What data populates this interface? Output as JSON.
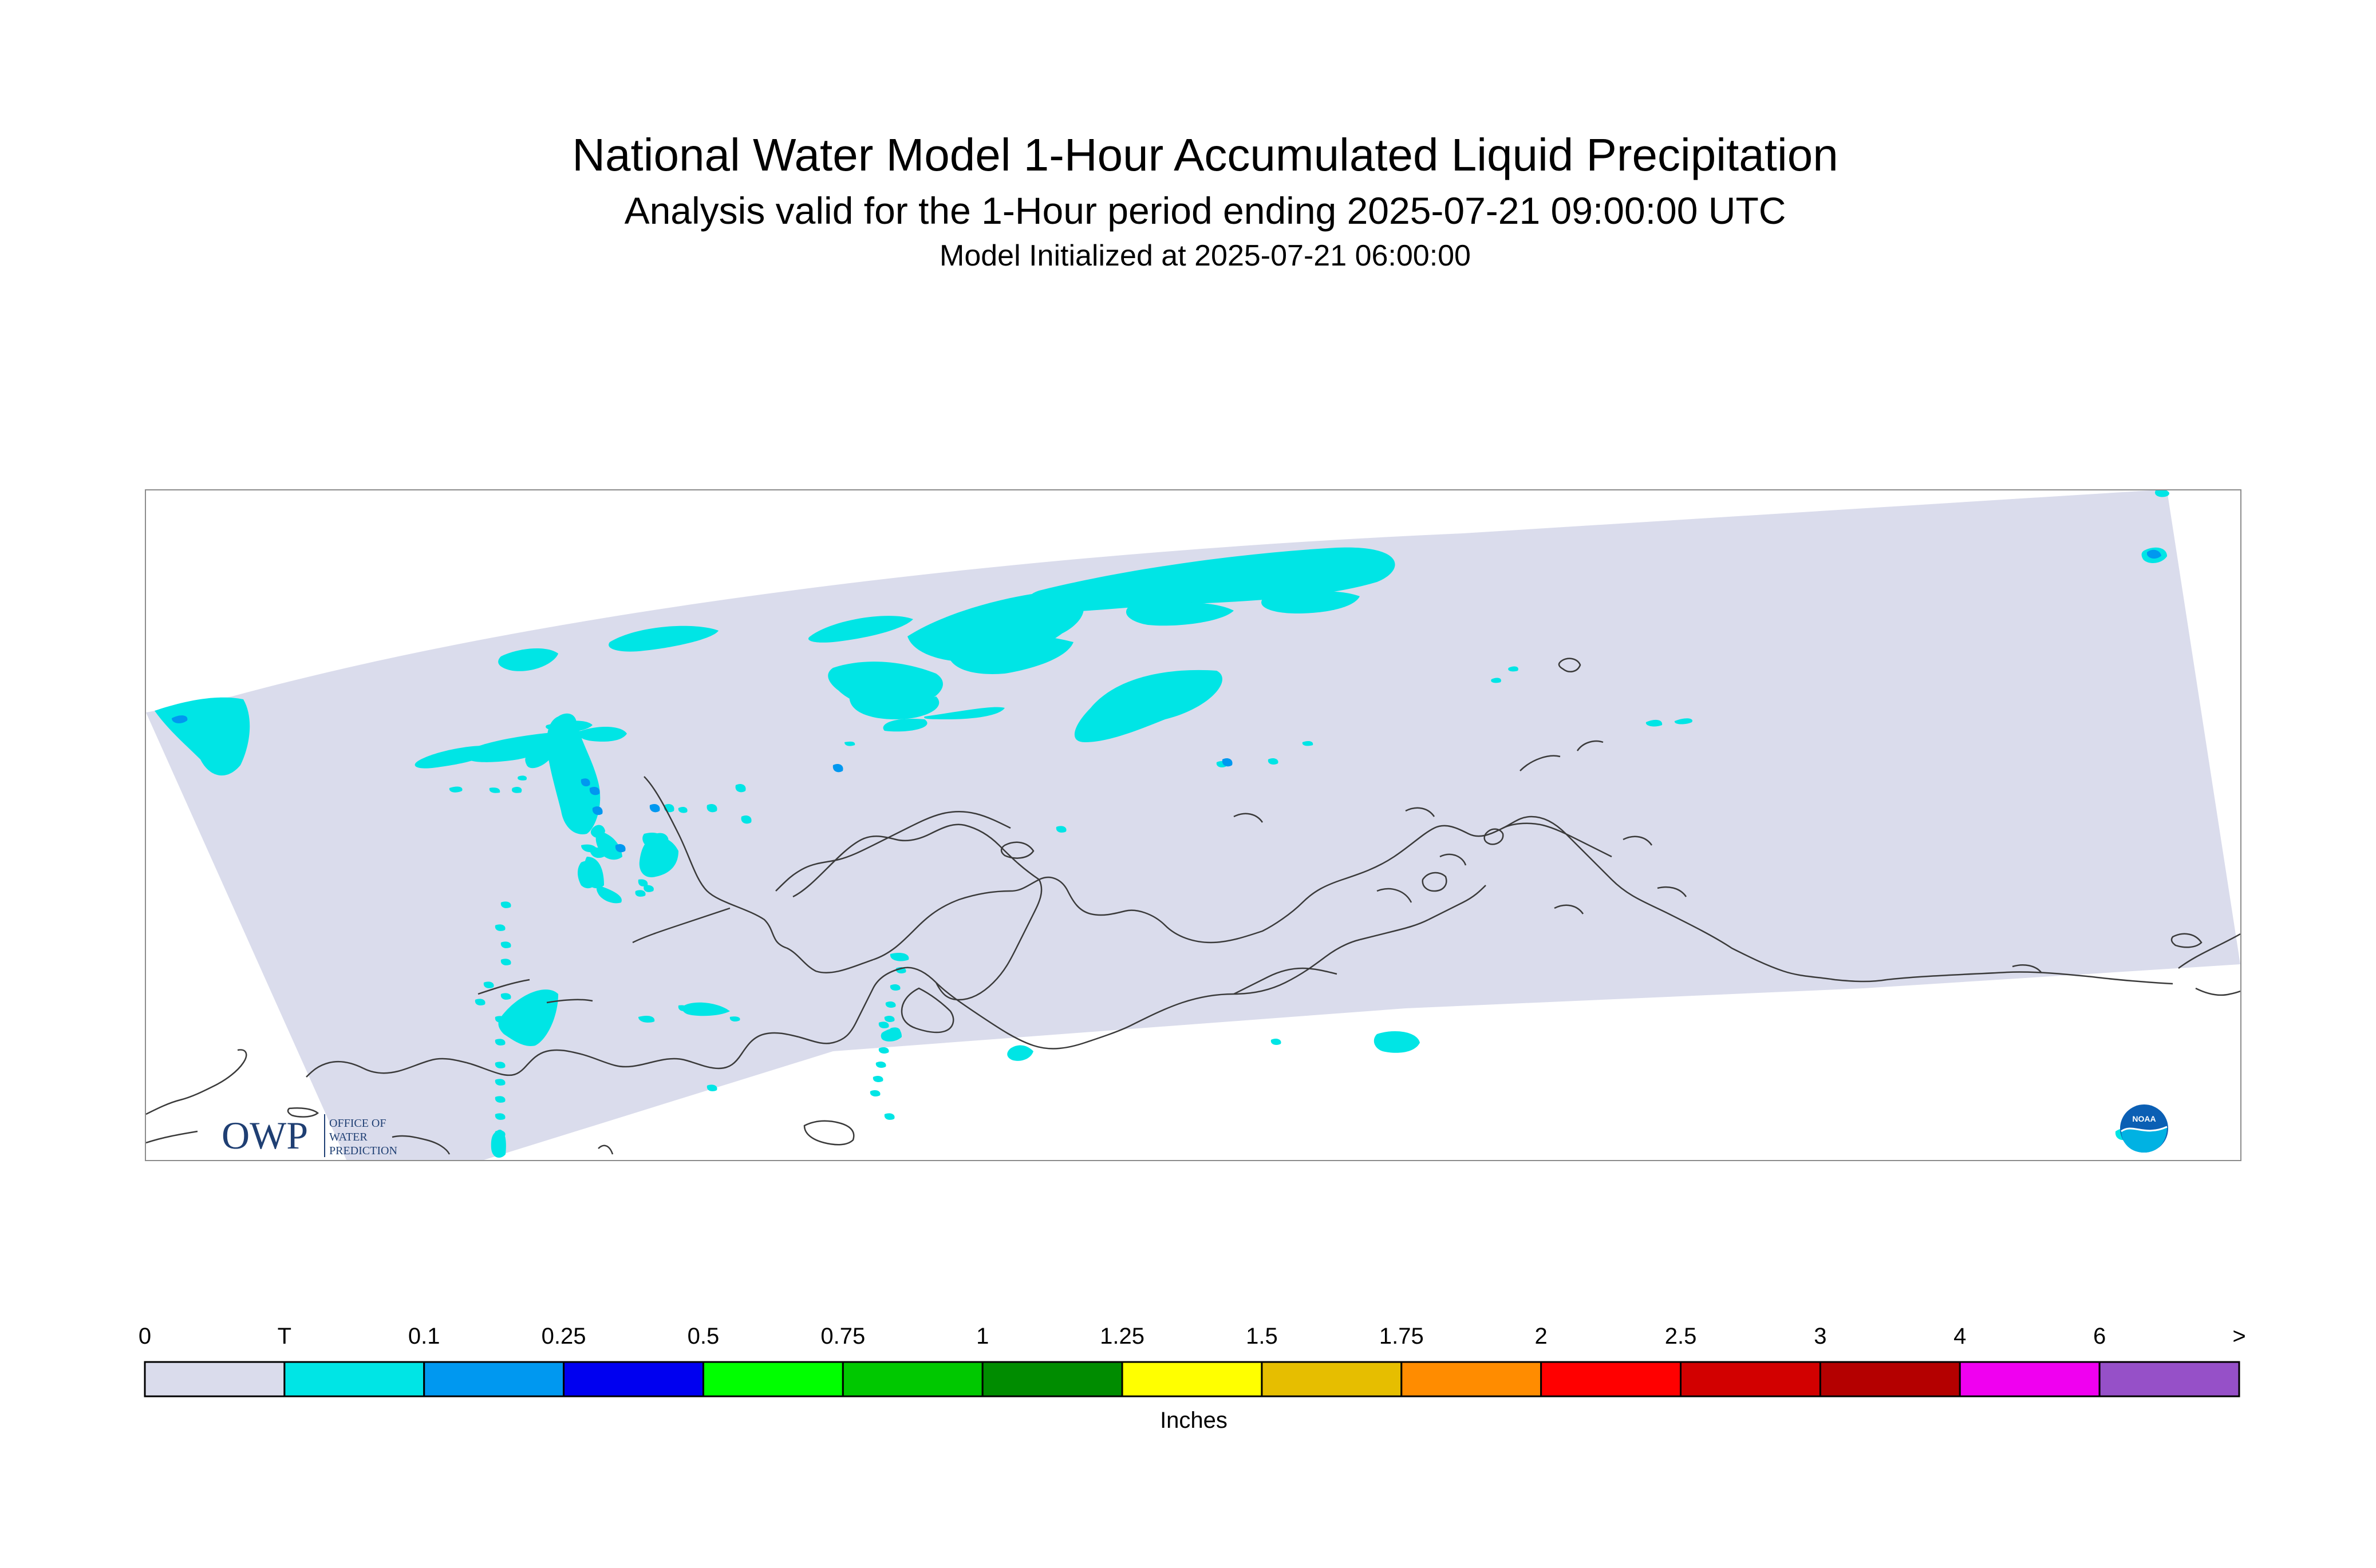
{
  "title": "National Water Model 1-Hour Accumulated Liquid Precipitation",
  "subtitle": "Analysis valid for the 1-Hour period ending 2025-07-21 09:00:00 UTC",
  "init_line": "Model Initialized at 2025-07-21 06:00:00",
  "logos": {
    "owp_text": "OWP",
    "owp_line1": "OFFICE OF",
    "owp_line2": "WATER",
    "owp_line3": "PREDICTION",
    "noaa_text": "NOAA"
  },
  "colors": {
    "domain": "#dadcec",
    "trace": "#00e5e5",
    "light_blue": "#0098f0",
    "coast": "#3a3a3a"
  },
  "legend": {
    "unit_label": "Inches",
    "tick_labels": [
      "0",
      "T",
      "0.1",
      "0.25",
      "0.5",
      "0.75",
      "1",
      "1.25",
      "1.5",
      "1.75",
      "2",
      "2.5",
      "3",
      "4",
      "6",
      ">"
    ],
    "bins": [
      {
        "color": "#dadcec"
      },
      {
        "color": "#00e5e5"
      },
      {
        "color": "#0098f0"
      },
      {
        "color": "#0000f0"
      },
      {
        "color": "#00ff00"
      },
      {
        "color": "#00c800"
      },
      {
        "color": "#008c00"
      },
      {
        "color": "#ffff00"
      },
      {
        "color": "#e6be00"
      },
      {
        "color": "#ff8c00"
      },
      {
        "color": "#ff0000"
      },
      {
        "color": "#d20000"
      },
      {
        "color": "#b40000"
      },
      {
        "color": "#f000f0"
      },
      {
        "color": "#9650c8"
      }
    ]
  }
}
